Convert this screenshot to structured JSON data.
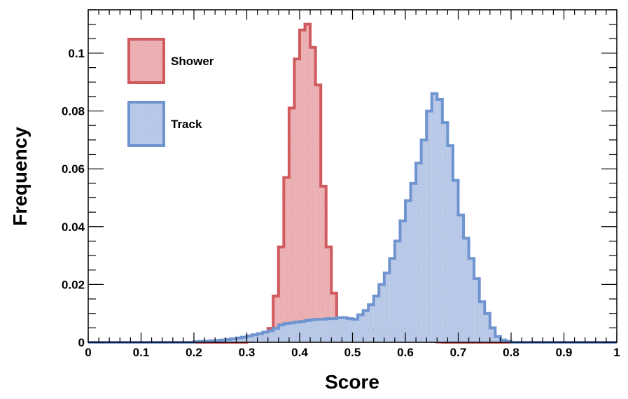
{
  "chart_data": {
    "type": "histogram",
    "xlabel": "Score",
    "ylabel": "Frequency",
    "xlim": [
      0,
      1
    ],
    "ylim": [
      0,
      0.115
    ],
    "bin_width": 0.01,
    "x_ticks": [
      0,
      0.1,
      0.2,
      0.3,
      0.4,
      0.5,
      0.6,
      0.7,
      0.8,
      0.9,
      1
    ],
    "x_tick_labels": [
      "0",
      "0.1",
      "0.2",
      "0.3",
      "0.4",
      "0.5",
      "0.6",
      "0.7",
      "0.8",
      "0.9",
      "1"
    ],
    "y_ticks": [
      0,
      0.02,
      0.04,
      0.06,
      0.08,
      0.1
    ],
    "y_tick_labels": [
      "0",
      "0.02",
      "0.04",
      "0.06",
      "0.08",
      "0.1"
    ],
    "grid": false,
    "legend_position": "top-left",
    "series": [
      {
        "name": "Shower",
        "color": "#d05a5e",
        "fill": "#f0c0c2",
        "bins_start": 0.3,
        "values": [
          0.0003,
          0.0006,
          0.0011,
          0.002,
          0.0048,
          0.016,
          0.033,
          0.057,
          0.081,
          0.098,
          0.108,
          0.11,
          0.102,
          0.089,
          0.054,
          0.033,
          0.017,
          0.008,
          0.0048,
          0.004,
          0.0038,
          0.004,
          0.004,
          0.0045,
          0.0045,
          0.0045,
          0.0048,
          0.0048,
          0.0048,
          0.004,
          0.003,
          0.002,
          0.0012,
          0.0008,
          0.0004,
          0.0003,
          0.0001,
          0.0
        ]
      },
      {
        "name": "Track",
        "color": "#6f94d0",
        "fill": "#c6d3ec",
        "bins_start": 0.2,
        "values": [
          0.0002,
          0.0003,
          0.0004,
          0.0005,
          0.0006,
          0.0008,
          0.001,
          0.0012,
          0.0015,
          0.0018,
          0.0022,
          0.0026,
          0.003,
          0.0035,
          0.004,
          0.0048,
          0.006,
          0.0065,
          0.0067,
          0.007,
          0.0072,
          0.0075,
          0.0078,
          0.008,
          0.008,
          0.0082,
          0.0082,
          0.0085,
          0.0085,
          0.0082,
          0.008,
          0.0095,
          0.011,
          0.013,
          0.016,
          0.02,
          0.024,
          0.029,
          0.035,
          0.042,
          0.049,
          0.055,
          0.062,
          0.07,
          0.08,
          0.086,
          0.084,
          0.076,
          0.068,
          0.056,
          0.044,
          0.036,
          0.029,
          0.022,
          0.014,
          0.01,
          0.005,
          0.002,
          0.0008,
          0.0003
        ]
      }
    ]
  }
}
